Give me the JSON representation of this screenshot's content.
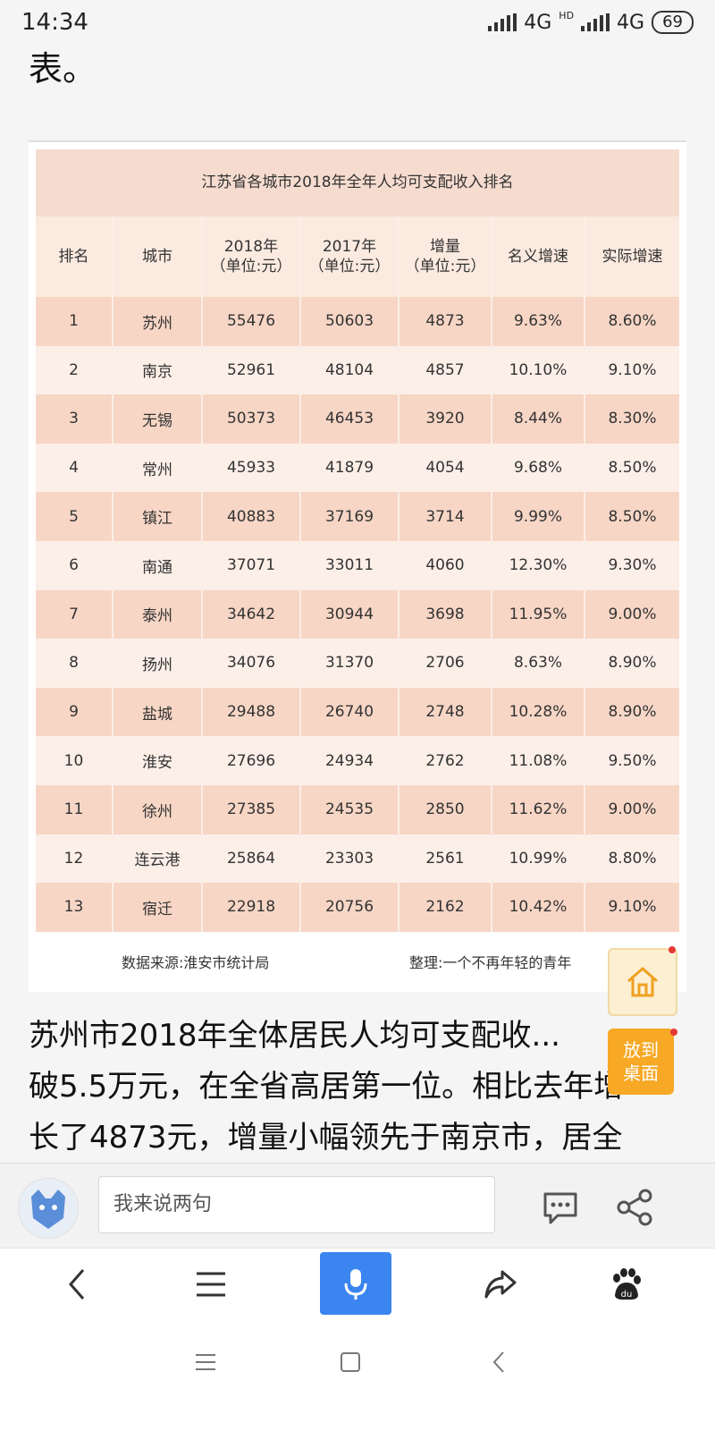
{
  "status": {
    "time": "14:34",
    "net1": "4G",
    "hd": "HD",
    "net2": "4G",
    "battery": "69"
  },
  "article": {
    "top_fragment": "表。",
    "body_lines": [
      "苏州市2018年全体居民人均可支配收...",
      "破5.5万元，在全省高居第一位。相比去年增",
      "长了4873元，增量小幅领先于南京市，居全"
    ]
  },
  "table": {
    "title": "江苏省各城市2018年全年人均可支配收入排名",
    "headers": [
      [
        "排名"
      ],
      [
        "城市"
      ],
      [
        "2018年",
        "（单位:元）"
      ],
      [
        "2017年",
        "（单位:元）"
      ],
      [
        "增量",
        "（单位:元）"
      ],
      [
        "名义增速"
      ],
      [
        "实际增速"
      ]
    ],
    "rows": [
      [
        "1",
        "苏州",
        "55476",
        "50603",
        "4873",
        "9.63%",
        "8.60%"
      ],
      [
        "2",
        "南京",
        "52961",
        "48104",
        "4857",
        "10.10%",
        "9.10%"
      ],
      [
        "3",
        "无锡",
        "50373",
        "46453",
        "3920",
        "8.44%",
        "8.30%"
      ],
      [
        "4",
        "常州",
        "45933",
        "41879",
        "4054",
        "9.68%",
        "8.50%"
      ],
      [
        "5",
        "镇江",
        "40883",
        "37169",
        "3714",
        "9.99%",
        "8.50%"
      ],
      [
        "6",
        "南通",
        "37071",
        "33011",
        "4060",
        "12.30%",
        "9.30%"
      ],
      [
        "7",
        "泰州",
        "34642",
        "30944",
        "3698",
        "11.95%",
        "9.00%"
      ],
      [
        "8",
        "扬州",
        "34076",
        "31370",
        "2706",
        "8.63%",
        "8.90%"
      ],
      [
        "9",
        "盐城",
        "29488",
        "26740",
        "2748",
        "10.28%",
        "8.90%"
      ],
      [
        "10",
        "淮安",
        "27696",
        "24934",
        "2762",
        "11.08%",
        "9.50%"
      ],
      [
        "11",
        "徐州",
        "27385",
        "24535",
        "2850",
        "11.62%",
        "9.00%"
      ],
      [
        "12",
        "连云港",
        "25864",
        "23303",
        "2561",
        "10.99%",
        "8.80%"
      ],
      [
        "13",
        "宿迁",
        "22918",
        "20756",
        "2162",
        "10.42%",
        "9.10%"
      ]
    ],
    "source": "数据来源:淮安市统计局",
    "organizer": "整理:一个不再年轻的青年"
  },
  "floating": {
    "home_icon": "home-icon",
    "desktop_label_1": "放到",
    "desktop_label_2": "桌面"
  },
  "comment": {
    "placeholder": "我来说两句"
  },
  "colors": {
    "accent_blue": "#3b85f0",
    "table_dark_row": "#f7d6c6",
    "table_light_row": "#fcefe8",
    "desk_orange": "#f7a825"
  }
}
